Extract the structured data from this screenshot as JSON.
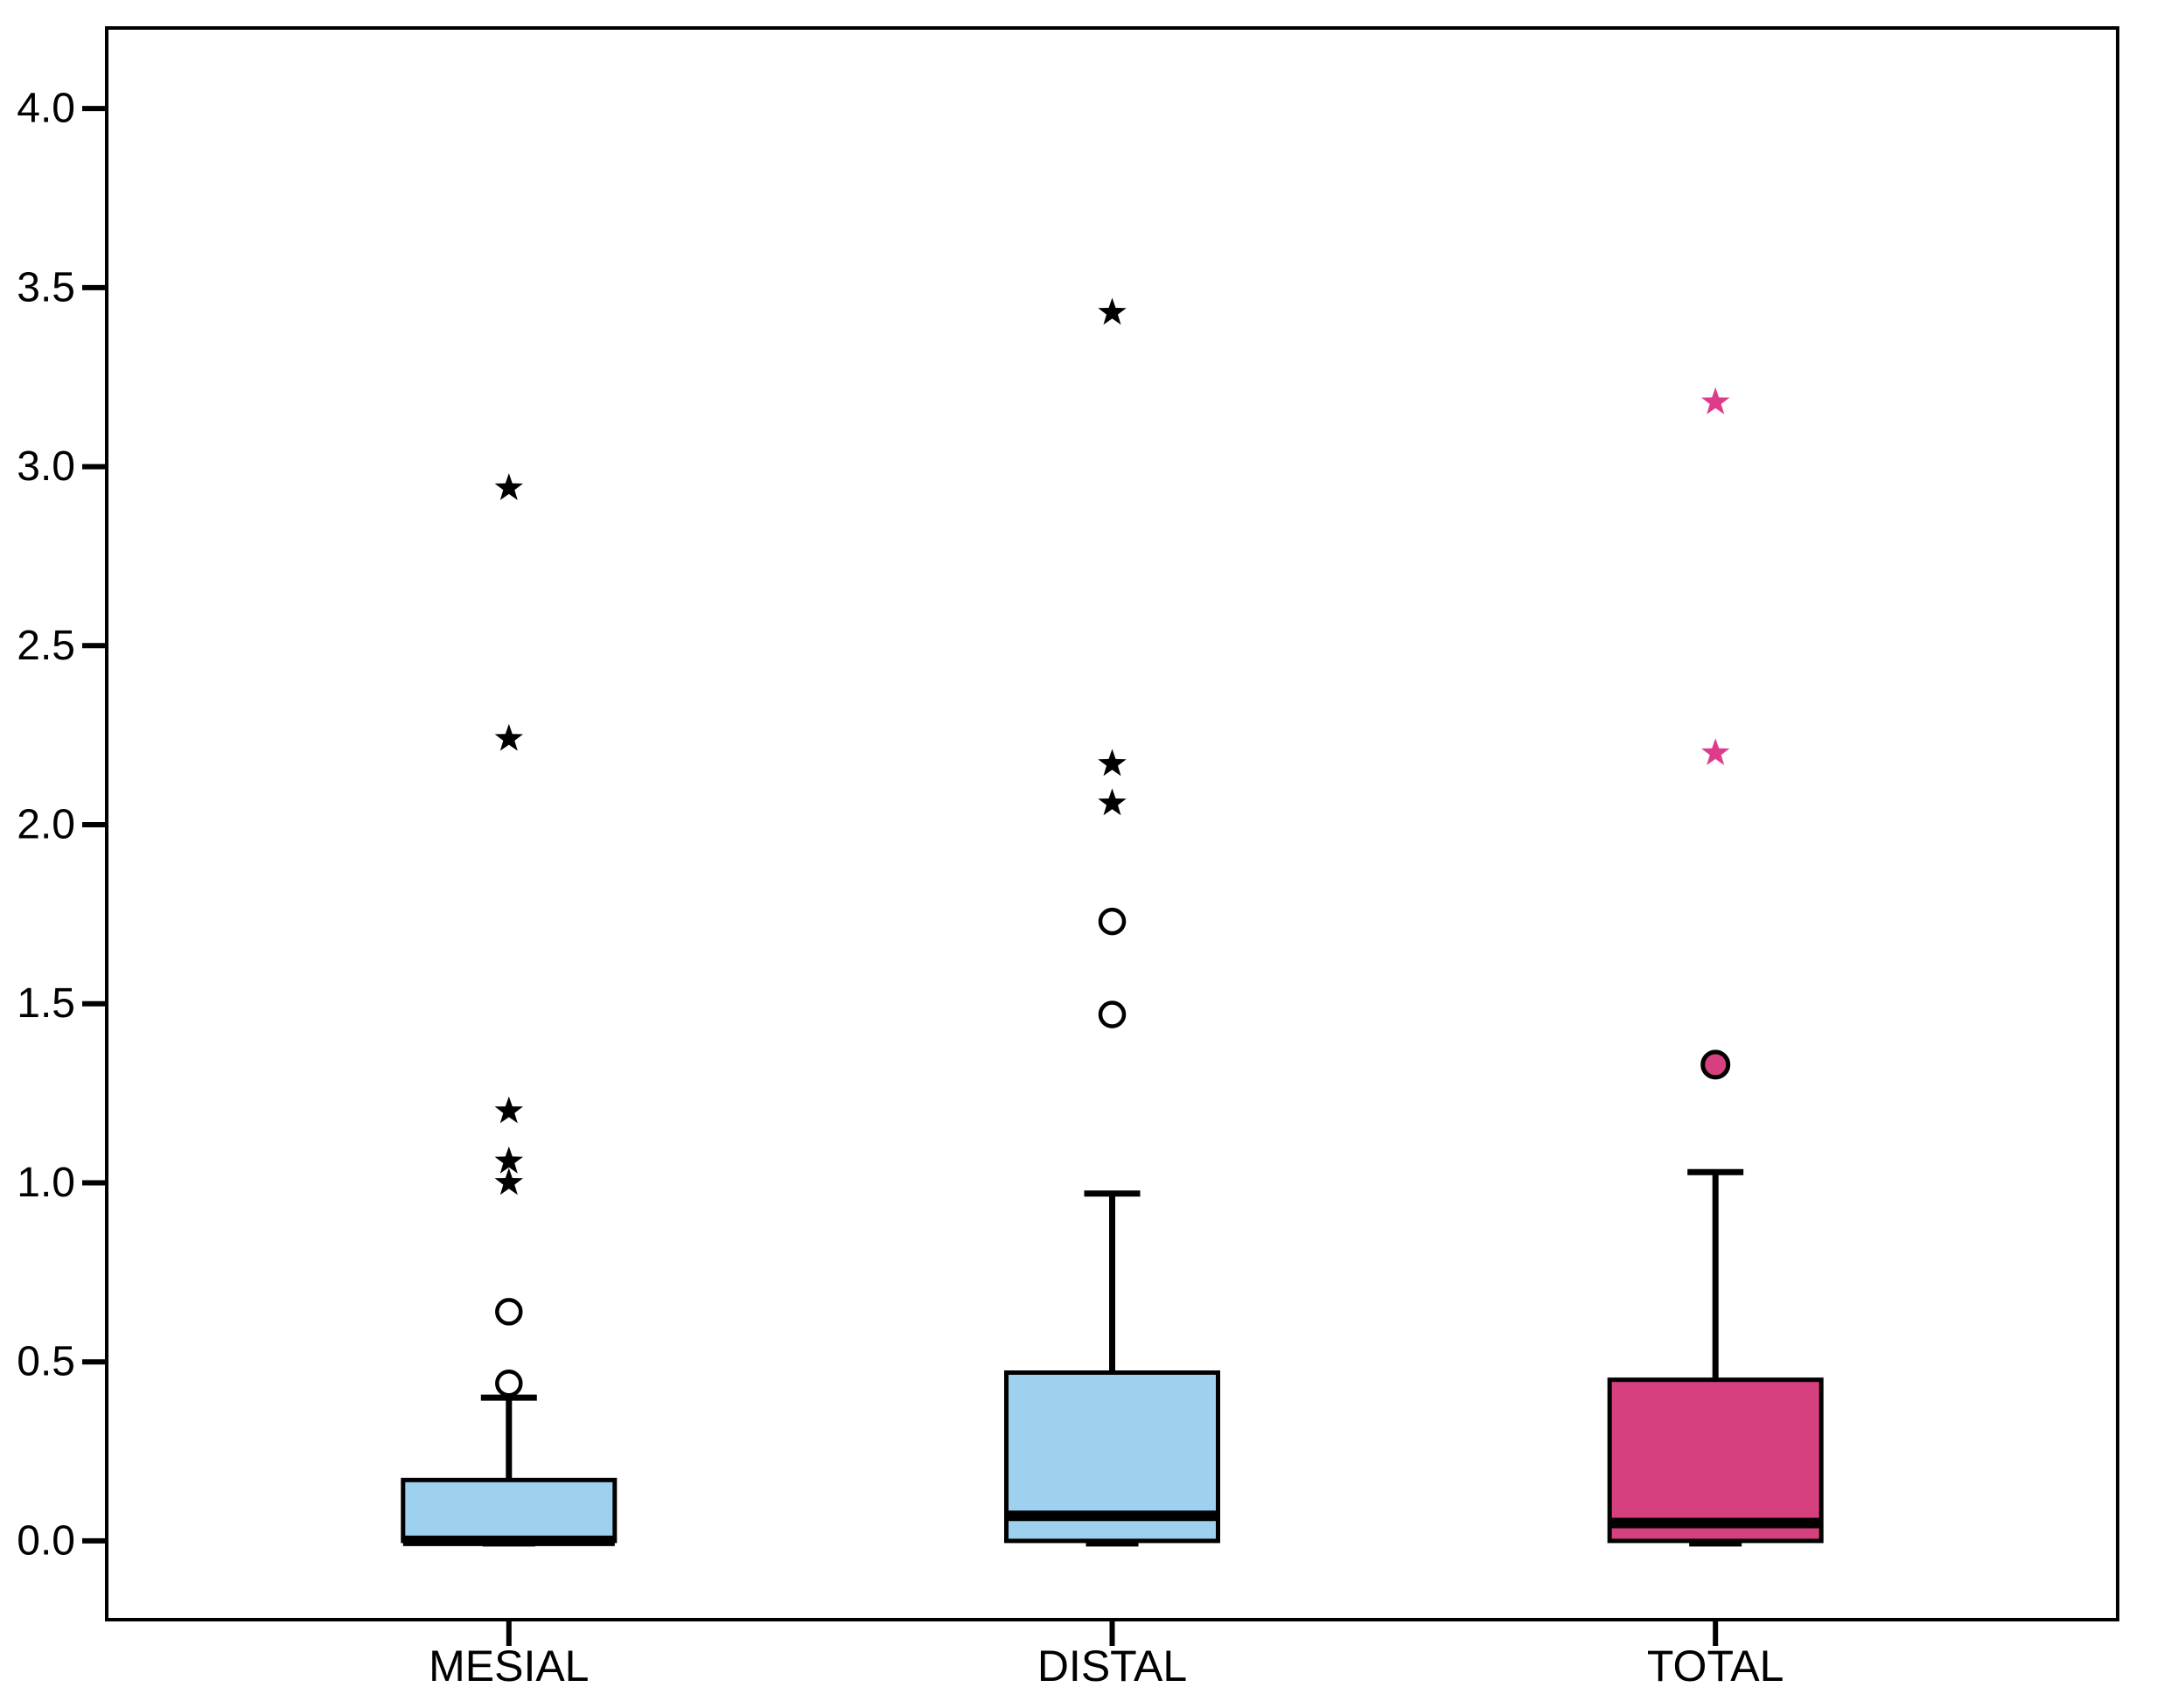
{
  "figure": {
    "background_color": "#FFFFFF",
    "frame_color": "#000000",
    "title": ""
  },
  "chart_data": {
    "type": "box",
    "title": "",
    "xlabel": "",
    "ylabel": "",
    "categories": [
      "MESIAL",
      "DISTAL",
      "TOTAL"
    ],
    "ylim": [
      -0.22,
      4.225
    ],
    "yticks": [
      0.0,
      0.5,
      1.0,
      1.5,
      2.0,
      2.5,
      3.0,
      3.5,
      4.0
    ],
    "ytick_labels": [
      "0.0",
      "0.5",
      "1.0",
      "1.5",
      "2.0",
      "2.5",
      "3.0",
      "3.5",
      "4.0"
    ],
    "grid": false,
    "legend": false,
    "boxes": [
      {
        "category": "MESIAL",
        "q1": 0.0,
        "median": 0.0,
        "q3": 0.17,
        "whisker_low": 0.0,
        "whisker_high": 0.4,
        "outliers_circle": [
          0.44,
          0.64
        ],
        "outliers_circle_filled": [],
        "outliers_star": [
          1.0,
          1.06,
          1.2,
          2.24,
          2.94
        ],
        "fill_color": "#9DD1EF",
        "edge_color": "#000000",
        "star_color": "#000000",
        "circle_edge_color": "#000000",
        "circle_fill_color": "#FFFFFF"
      },
      {
        "category": "DISTAL",
        "q1": 0.0,
        "median": 0.07,
        "q3": 0.47,
        "whisker_low": 0.0,
        "whisker_high": 0.97,
        "outliers_circle": [
          1.47,
          1.73
        ],
        "outliers_circle_filled": [],
        "outliers_star": [
          2.06,
          2.17,
          3.43
        ],
        "fill_color": "#9DD1EF",
        "edge_color": "#000000",
        "star_color": "#000000",
        "circle_edge_color": "#000000",
        "circle_fill_color": "#FFFFFF"
      },
      {
        "category": "TOTAL",
        "q1": 0.0,
        "median": 0.05,
        "q3": 0.45,
        "whisker_low": 0.0,
        "whisker_high": 1.03,
        "outliers_circle": [],
        "outliers_circle_filled": [
          1.33
        ],
        "outliers_star": [
          2.2,
          3.18
        ],
        "fill_color": "#D7407F",
        "edge_color": "#000000",
        "star_color": "#DE3C8B",
        "circle_edge_color": "#000000",
        "circle_fill_color": "#D7407F"
      }
    ]
  }
}
